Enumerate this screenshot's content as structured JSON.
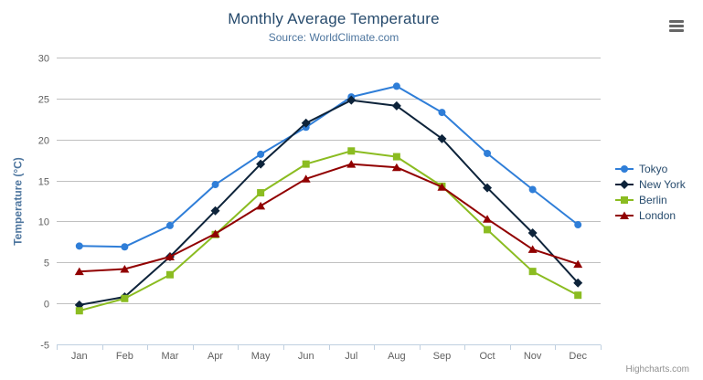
{
  "header": {
    "title": "Monthly Average Temperature",
    "subtitle": "Source: WorldClimate.com"
  },
  "credits": "Highcharts.com",
  "colors": {
    "title": "#274b6d",
    "subtitle": "#4d759e",
    "axis_title": "#4d759e",
    "axis_labels": "#606060",
    "gridline": "#c0c0c0",
    "axis_line": "#c0d0e0",
    "legend_text": "#274b6d",
    "credits_text": "#909090",
    "hamburger": "#666666"
  },
  "chart_data": {
    "type": "line",
    "title": "Monthly Average Temperature",
    "subtitle": "Source: WorldClimate.com",
    "xlabel": "",
    "ylabel": "Temperature (°C)",
    "ylim": [
      -5,
      30
    ],
    "ytick_interval": 5,
    "grid": true,
    "legend_position": "right",
    "categories": [
      "Jan",
      "Feb",
      "Mar",
      "Apr",
      "May",
      "Jun",
      "Jul",
      "Aug",
      "Sep",
      "Oct",
      "Nov",
      "Dec"
    ],
    "series": [
      {
        "name": "Tokyo",
        "color": "#2f7ed8",
        "marker": "circle",
        "values": [
          7.0,
          6.9,
          9.5,
          14.5,
          18.2,
          21.5,
          25.2,
          26.5,
          23.3,
          18.3,
          13.9,
          9.6
        ]
      },
      {
        "name": "New York",
        "color": "#0d233a",
        "marker": "diamond",
        "values": [
          -0.2,
          0.8,
          5.7,
          11.3,
          17.0,
          22.0,
          24.8,
          24.1,
          20.1,
          14.1,
          8.6,
          2.5
        ]
      },
      {
        "name": "Berlin",
        "color": "#8bbc21",
        "marker": "square",
        "values": [
          -0.9,
          0.6,
          3.5,
          8.4,
          13.5,
          17.0,
          18.6,
          17.9,
          14.3,
          9.0,
          3.9,
          1.0
        ]
      },
      {
        "name": "London",
        "color": "#910000",
        "marker": "triangle",
        "values": [
          3.9,
          4.2,
          5.7,
          8.5,
          11.9,
          15.2,
          17.0,
          16.6,
          14.2,
          10.3,
          6.6,
          4.8
        ]
      }
    ]
  }
}
